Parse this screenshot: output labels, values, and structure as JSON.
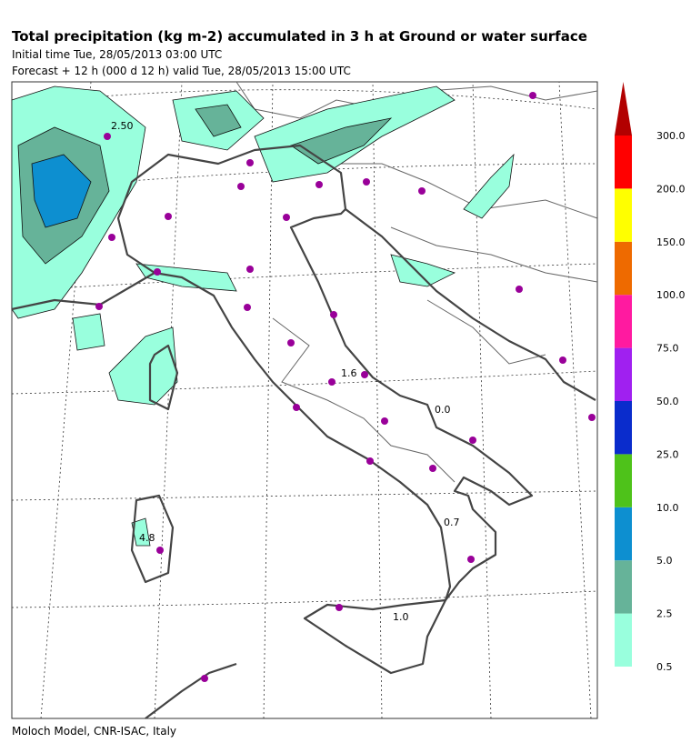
{
  "header": {
    "title": "Total precipitation (kg m-2) accumulated in   3 h at Ground or water surface",
    "initial_time": "Initial time  Tue, 28/05/2013  03:00 UTC",
    "forecast": "Forecast  +  12 h  (000 d 12 h)  valid Tue, 28/05/2013 15:00 UTC"
  },
  "colorbar": {
    "labels": [
      "0.5",
      "2.5",
      "5.0",
      "10.0",
      "25.0",
      "50.0",
      "75.0",
      "100.0",
      "150.0",
      "200.0",
      "300.0"
    ]
  },
  "contour_labels": [
    "2.50",
    "1.6",
    "0.0",
    "0.7",
    "4.8",
    "1.0"
  ],
  "footer": "Moloch Model, CNR-ISAC, Italy"
}
